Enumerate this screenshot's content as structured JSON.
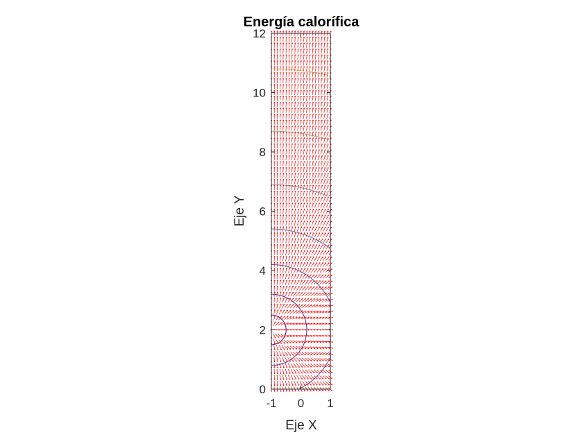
{
  "chart_data": {
    "type": "contour+quiver",
    "title": "Energía calorífica",
    "xlabel": "Eje X",
    "ylabel": "Eje Y",
    "xlim": [
      -1,
      1
    ],
    "ylim": [
      0,
      12
    ],
    "x_ticks": [
      "-1",
      "0",
      "1"
    ],
    "y_ticks": [
      "0",
      "2",
      "4",
      "6",
      "8",
      "10",
      "12"
    ],
    "x_tick_values": [
      -1,
      0,
      1
    ],
    "y_tick_values": [
      0,
      2,
      4,
      6,
      8,
      10,
      12
    ],
    "grid": false,
    "legend": "none",
    "source_point": [
      -1,
      2
    ],
    "contour_levels": [
      0.5,
      1.2,
      2.2,
      3.4,
      4.9,
      6.7,
      8.8,
      11.2
    ],
    "quiver": {
      "x_range": [
        -1,
        1
      ],
      "y_range": [
        0,
        12
      ],
      "nx": 21,
      "ny": 61,
      "color": "#ff0000"
    },
    "colors": {
      "contour_low": "#3d0a8f",
      "contour_mid": "#2f9fd8",
      "contour_high": "#f2d81c",
      "arrows": "#ff0000",
      "axes": "#262626"
    }
  }
}
